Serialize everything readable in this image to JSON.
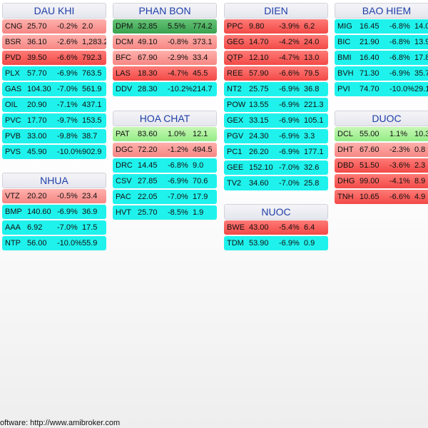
{
  "colors": {
    "floor": "#1ff2ec",
    "strong_down": "#f24a47",
    "mild_down": "#f68784",
    "strong_up": "#3aa24f",
    "mild_up": "#93ec86"
  },
  "sectors": [
    {
      "id": "dau-khi",
      "title": "DAU KHI",
      "rows": [
        {
          "sym": "CNG",
          "price": "25.70",
          "chg": "-0.2%",
          "vol": "2.0",
          "cls": "red2"
        },
        {
          "sym": "BSR",
          "price": "36.10",
          "chg": "-2.6%",
          "vol": "1,283.2",
          "cls": "red2"
        },
        {
          "sym": "PVD",
          "price": "39.50",
          "chg": "-6.6%",
          "vol": "792.3",
          "cls": "red1"
        },
        {
          "sym": "PLX",
          "price": "57.70",
          "chg": "-6.9%",
          "vol": "763.5",
          "cls": "cyan"
        },
        {
          "sym": "GAS",
          "price": "104.30",
          "chg": "-7.0%",
          "vol": "561.9",
          "cls": "cyan"
        },
        {
          "sym": "OIL",
          "price": "20.90",
          "chg": "-7.1%",
          "vol": "437.1",
          "cls": "cyan"
        },
        {
          "sym": "PVC",
          "price": "17.70",
          "chg": "-9.7%",
          "vol": "153.5",
          "cls": "cyan"
        },
        {
          "sym": "PVB",
          "price": "33.00",
          "chg": "-9.8%",
          "vol": "38.7",
          "cls": "cyan"
        },
        {
          "sym": "PVS",
          "price": "45.90",
          "chg": "-10.0%",
          "vol": "902.9",
          "cls": "cyan"
        }
      ]
    },
    {
      "id": "nhua",
      "title": "NHUA",
      "rows": [
        {
          "sym": "VTZ",
          "price": "20.20",
          "chg": "-0.5%",
          "vol": "23.4",
          "cls": "red2"
        },
        {
          "sym": "BMP",
          "price": "140.60",
          "chg": "-6.9%",
          "vol": "36.9",
          "cls": "cyan"
        },
        {
          "sym": "AAA",
          "price": "6.92",
          "chg": "-7.0%",
          "vol": "17.5",
          "cls": "cyan"
        },
        {
          "sym": "NTP",
          "price": "56.00",
          "chg": "-10.0%",
          "vol": "55.9",
          "cls": "cyan"
        }
      ]
    },
    {
      "id": "phan-bon",
      "title": "PHAN BON",
      "rows": [
        {
          "sym": "DPM",
          "price": "32.85",
          "chg": "5.5%",
          "vol": "774.2",
          "cls": "green1"
        },
        {
          "sym": "DCM",
          "price": "49.10",
          "chg": "-0.8%",
          "vol": "373.1",
          "cls": "red2"
        },
        {
          "sym": "BFC",
          "price": "67.90",
          "chg": "-2.9%",
          "vol": "33.4",
          "cls": "red2"
        },
        {
          "sym": "LAS",
          "price": "18.30",
          "chg": "-4.7%",
          "vol": "45.5",
          "cls": "red1"
        },
        {
          "sym": "DDV",
          "price": "28.30",
          "chg": "-10.2%",
          "vol": "214.7",
          "cls": "cyan"
        }
      ]
    },
    {
      "id": "hoa-chat",
      "title": "HOA CHAT",
      "rows": [
        {
          "sym": "PAT",
          "price": "83.60",
          "chg": "1.0%",
          "vol": "12.1",
          "cls": "green2"
        },
        {
          "sym": "DGC",
          "price": "72.20",
          "chg": "-1.2%",
          "vol": "494.5",
          "cls": "red2"
        },
        {
          "sym": "DRC",
          "price": "14.45",
          "chg": "-6.8%",
          "vol": "9.0",
          "cls": "cyan"
        },
        {
          "sym": "CSV",
          "price": "27.85",
          "chg": "-6.9%",
          "vol": "70.6",
          "cls": "cyan"
        },
        {
          "sym": "PAC",
          "price": "22.05",
          "chg": "-7.0%",
          "vol": "17.9",
          "cls": "cyan"
        },
        {
          "sym": "HVT",
          "price": "25.70",
          "chg": "-8.5%",
          "vol": "1.9",
          "cls": "cyan"
        }
      ]
    },
    {
      "id": "dien",
      "title": "DIEN",
      "rows": [
        {
          "sym": "PPC",
          "price": "9.80",
          "chg": "-3.9%",
          "vol": "6.2",
          "cls": "red1"
        },
        {
          "sym": "GEG",
          "price": "14.70",
          "chg": "-4.2%",
          "vol": "24.0",
          "cls": "red1"
        },
        {
          "sym": "QTP",
          "price": "12.10",
          "chg": "-4.7%",
          "vol": "13.0",
          "cls": "red1"
        },
        {
          "sym": "REE",
          "price": "57.90",
          "chg": "-6.6%",
          "vol": "79.5",
          "cls": "red1"
        },
        {
          "sym": "NT2",
          "price": "25.75",
          "chg": "-6.9%",
          "vol": "36.8",
          "cls": "cyan"
        },
        {
          "sym": "POW",
          "price": "13.55",
          "chg": "-6.9%",
          "vol": "221.3",
          "cls": "cyan"
        },
        {
          "sym": "GEX",
          "price": "33.15",
          "chg": "-6.9%",
          "vol": "105.1",
          "cls": "cyan"
        },
        {
          "sym": "PGV",
          "price": "24.30",
          "chg": "-6.9%",
          "vol": "3.3",
          "cls": "cyan"
        },
        {
          "sym": "PC1",
          "price": "26.20",
          "chg": "-6.9%",
          "vol": "177.1",
          "cls": "cyan"
        },
        {
          "sym": "GEE",
          "price": "152.10",
          "chg": "-7.0%",
          "vol": "32.6",
          "cls": "cyan"
        },
        {
          "sym": "TV2",
          "price": "34.60",
          "chg": "-7.0%",
          "vol": "25.8",
          "cls": "cyan"
        }
      ]
    },
    {
      "id": "nuoc",
      "title": "NUOC",
      "rows": [
        {
          "sym": "BWE",
          "price": "43.00",
          "chg": "-5.4%",
          "vol": "6.4",
          "cls": "red1"
        },
        {
          "sym": "TDM",
          "price": "53.90",
          "chg": "-6.9%",
          "vol": "0.9",
          "cls": "cyan"
        }
      ]
    },
    {
      "id": "bao-hiem",
      "title": "BAO HIEM",
      "rows": [
        {
          "sym": "MIG",
          "price": "16.45",
          "chg": "-6.8%",
          "vol": "14.0",
          "cls": "cyan"
        },
        {
          "sym": "BIC",
          "price": "21.90",
          "chg": "-6.8%",
          "vol": "13.9",
          "cls": "cyan"
        },
        {
          "sym": "BMI",
          "price": "16.40",
          "chg": "-6.8%",
          "vol": "17.8",
          "cls": "cyan"
        },
        {
          "sym": "BVH",
          "price": "71.30",
          "chg": "-6.9%",
          "vol": "35.7",
          "cls": "cyan"
        },
        {
          "sym": "PVI",
          "price": "74.70",
          "chg": "-10.0%",
          "vol": "29.1",
          "cls": "cyan"
        }
      ]
    },
    {
      "id": "duoc",
      "title": "DUOC",
      "rows": [
        {
          "sym": "DCL",
          "price": "55.00",
          "chg": "1.1%",
          "vol": "10.3",
          "cls": "green2"
        },
        {
          "sym": "DHT",
          "price": "67.60",
          "chg": "-2.3%",
          "vol": "0.8",
          "cls": "red2"
        },
        {
          "sym": "DBD",
          "price": "51.50",
          "chg": "-3.6%",
          "vol": "2.3",
          "cls": "red1"
        },
        {
          "sym": "DHG",
          "price": "99.00",
          "chg": "-4.1%",
          "vol": "8.9",
          "cls": "red1"
        },
        {
          "sym": "TNH",
          "price": "10.65",
          "chg": "-6.6%",
          "vol": "4.9",
          "cls": "red1"
        }
      ]
    }
  ],
  "footer": {
    "text": "oftware: http://www.amibroker.com"
  }
}
